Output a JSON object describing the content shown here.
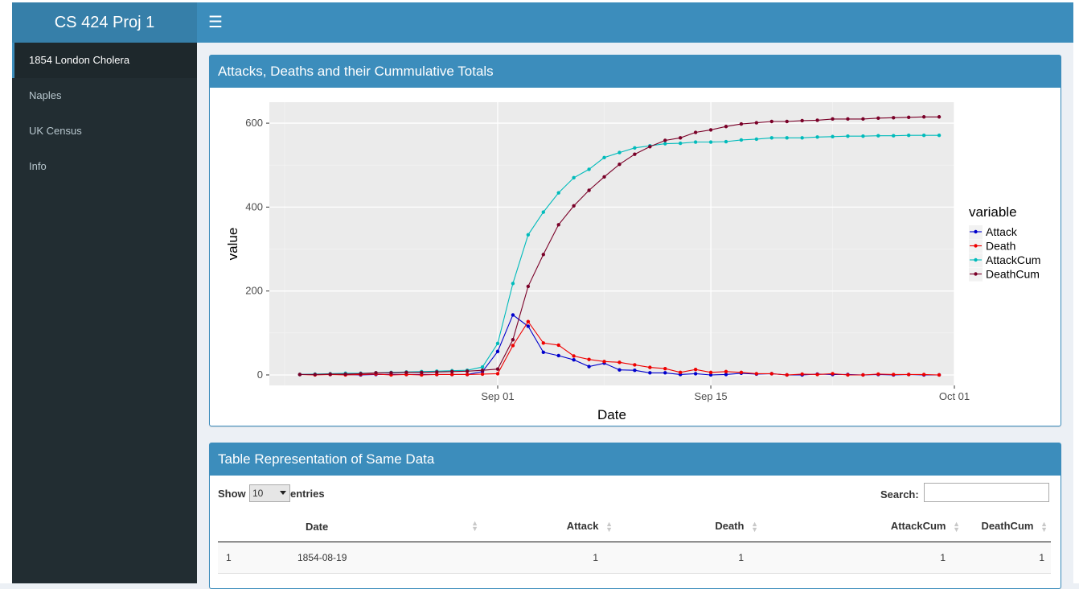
{
  "app": {
    "title": "CS 424 Proj 1"
  },
  "navbar": {
    "toggle_icon": "hamburger-icon"
  },
  "sidebar": {
    "items": [
      {
        "label": "1854 London Cholera",
        "active": true
      },
      {
        "label": "Naples"
      },
      {
        "label": "UK Census"
      },
      {
        "label": "Info"
      }
    ]
  },
  "chart_box": {
    "title": "Attacks, Deaths and their Cummulative Totals"
  },
  "table_box": {
    "title": "Table Representation of Same Data",
    "show_label": "Show",
    "length_value": "10",
    "entries_label": "entries",
    "search_label": "Search:",
    "search_value": "",
    "columns": [
      "",
      "Date",
      "Attack",
      "Death",
      "AttackCum",
      "DeathCum"
    ],
    "rows": [
      [
        "1",
        "1854-08-19",
        "1",
        "1",
        "1",
        "1"
      ]
    ]
  },
  "chart_data": {
    "type": "line",
    "xlabel": "Date",
    "ylabel": "value",
    "x_ticks": [
      "Sep 01",
      "Sep 15",
      "Oct 01"
    ],
    "y_ticks": [
      "0",
      "200",
      "400",
      "600"
    ],
    "ylim": [
      -25,
      650
    ],
    "xlim": [
      "1854-08-17",
      "1854-10-01"
    ],
    "grid": true,
    "legend": {
      "title": "variable",
      "position": "right"
    },
    "x": [
      "1854-08-19",
      "1854-08-20",
      "1854-08-21",
      "1854-08-22",
      "1854-08-23",
      "1854-08-24",
      "1854-08-25",
      "1854-08-26",
      "1854-08-27",
      "1854-08-28",
      "1854-08-29",
      "1854-08-30",
      "1854-08-31",
      "1854-09-01",
      "1854-09-02",
      "1854-09-03",
      "1854-09-04",
      "1854-09-05",
      "1854-09-06",
      "1854-09-07",
      "1854-09-08",
      "1854-09-09",
      "1854-09-10",
      "1854-09-11",
      "1854-09-12",
      "1854-09-13",
      "1854-09-14",
      "1854-09-15",
      "1854-09-16",
      "1854-09-17",
      "1854-09-18",
      "1854-09-19",
      "1854-09-20",
      "1854-09-21",
      "1854-09-22",
      "1854-09-23",
      "1854-09-24",
      "1854-09-25",
      "1854-09-26",
      "1854-09-27",
      "1854-09-28",
      "1854-09-29",
      "1854-09-30"
    ],
    "series": [
      {
        "name": "Attack",
        "color": "#0000cc",
        "values": [
          1,
          1,
          1,
          1,
          0,
          1,
          1,
          1,
          1,
          1,
          1,
          1,
          8,
          56,
          143,
          116,
          54,
          46,
          36,
          20,
          28,
          12,
          11,
          5,
          5,
          1,
          3,
          0,
          1,
          4,
          2,
          3,
          0,
          0,
          2,
          1,
          1,
          0,
          1,
          0,
          1,
          0,
          0
        ]
      },
      {
        "name": "Death",
        "color": "#ee0000",
        "values": [
          1,
          0,
          1,
          0,
          1,
          2,
          0,
          1,
          0,
          1,
          1,
          1,
          2,
          3,
          70,
          127,
          76,
          71,
          45,
          37,
          32,
          30,
          24,
          18,
          15,
          6,
          13,
          6,
          8,
          6,
          3,
          3,
          0,
          2,
          1,
          3,
          0,
          0,
          2,
          1,
          1,
          1,
          0
        ]
      },
      {
        "name": "AttackCum",
        "color": "#00bbbb",
        "values": [
          1,
          2,
          3,
          4,
          4,
          5,
          6,
          7,
          8,
          9,
          10,
          11,
          19,
          75,
          218,
          334,
          388,
          434,
          470,
          490,
          518,
          530,
          541,
          546,
          551,
          552,
          555,
          555,
          556,
          560,
          562,
          565,
          565,
          565,
          567,
          568,
          569,
          569,
          570,
          570,
          571,
          571,
          571
        ]
      },
      {
        "name": "DeathCum",
        "color": "#7a0028",
        "values": [
          1,
          1,
          2,
          2,
          3,
          5,
          5,
          6,
          6,
          7,
          8,
          9,
          11,
          14,
          84,
          211,
          287,
          358,
          403,
          440,
          472,
          502,
          526,
          544,
          559,
          565,
          578,
          584,
          592,
          598,
          601,
          604,
          604,
          606,
          607,
          610,
          610,
          610,
          612,
          613,
          614,
          615,
          615
        ]
      }
    ]
  }
}
